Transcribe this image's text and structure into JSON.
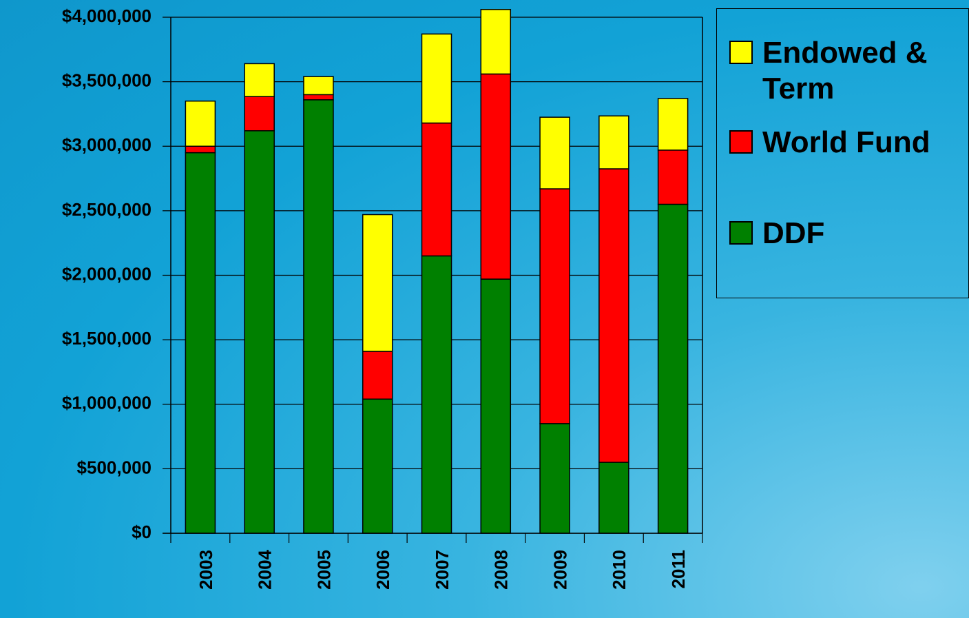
{
  "chart_data": {
    "type": "bar",
    "stacked": true,
    "categories": [
      "2003",
      "2004",
      "2005",
      "2006",
      "2007",
      "2008",
      "2009",
      "2010",
      "2011"
    ],
    "series": [
      {
        "name": "DDF",
        "color": "#008000",
        "values": [
          2950000,
          3120000,
          3360000,
          1040000,
          2150000,
          1970000,
          850000,
          550000,
          2550000
        ]
      },
      {
        "name": "World Fund",
        "color": "#ff0000",
        "values": [
          50000,
          265000,
          40000,
          370000,
          1030000,
          1590000,
          1820000,
          2275000,
          420000
        ]
      },
      {
        "name": "Endowed & Term",
        "color": "#ffff00",
        "values": [
          350000,
          255000,
          140000,
          1060000,
          690000,
          500000,
          555000,
          410000,
          400000
        ]
      }
    ],
    "ylim": [
      0,
      4000000
    ],
    "yticks": [
      {
        "value": 0,
        "label": "$0"
      },
      {
        "value": 500000,
        "label": "$500,000"
      },
      {
        "value": 1000000,
        "label": "$1,000,000"
      },
      {
        "value": 1500000,
        "label": "$1,500,000"
      },
      {
        "value": 2000000,
        "label": "$2,000,000"
      },
      {
        "value": 2500000,
        "label": "$2,500,000"
      },
      {
        "value": 3000000,
        "label": "$3,000,000"
      },
      {
        "value": 3500000,
        "label": "$3,500,000"
      },
      {
        "value": 4000000,
        "label": "$4,000,000"
      }
    ],
    "grid": true
  }
}
